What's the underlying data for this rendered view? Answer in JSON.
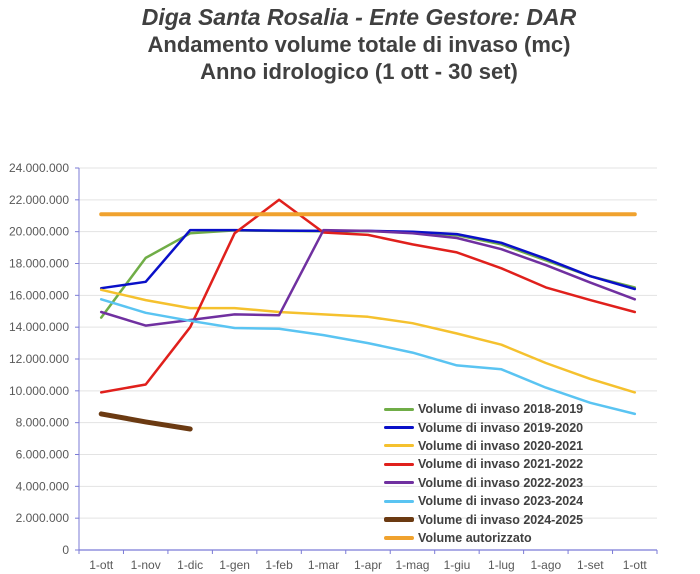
{
  "titles": {
    "line1": "Diga Santa Rosalia - Ente Gestore: DAR",
    "line2": "Andamento volume totale di invaso (mc)",
    "line3": "Anno idrologico (1 ott - 30 set)"
  },
  "chart_data": {
    "type": "line",
    "title": "Diga Santa Rosalia - Ente Gestore: DAR — Andamento volume totale di invaso (mc) — Anno idrologico (1 ott - 30 set)",
    "xlabel": "",
    "ylabel": "",
    "ylim": [
      0,
      24000000
    ],
    "yticks": [
      0,
      2000000,
      4000000,
      6000000,
      8000000,
      10000000,
      12000000,
      14000000,
      16000000,
      18000000,
      20000000,
      22000000,
      24000000
    ],
    "ytick_labels": [
      "0",
      "2.000.000",
      "4.000.000",
      "6.000.000",
      "8.000.000",
      "10.000.000",
      "12.000.000",
      "14.000.000",
      "16.000.000",
      "18.000.000",
      "20.000.000",
      "22.000.000",
      "24.000.000"
    ],
    "grid": "horizontal",
    "legend_position": "lower-right inside plot",
    "categories": [
      "1-ott",
      "1-nov",
      "1-dic",
      "1-gen",
      "1-feb",
      "1-mar",
      "1-apr",
      "1-mag",
      "1-giu",
      "1-lug",
      "1-ago",
      "1-set",
      "1-ott"
    ],
    "series": [
      {
        "name": "Volume di invaso 2018-2019",
        "color": "#70AD47",
        "width": 2.5,
        "values": [
          14600000,
          18350000,
          19900000,
          20080000,
          20050000,
          20030000,
          20020000,
          19980000,
          19780000,
          19200000,
          18200000,
          17200000,
          16500000
        ]
      },
      {
        "name": "Volume di invaso 2019-2020",
        "color": "#0A10C8",
        "width": 2.5,
        "values": [
          16450000,
          16850000,
          20100000,
          20100000,
          20070000,
          20050000,
          20050000,
          20000000,
          19850000,
          19300000,
          18300000,
          17200000,
          16400000
        ]
      },
      {
        "name": "Volume di invaso 2020-2021",
        "color": "#F5C12E",
        "width": 2.5,
        "values": [
          16350000,
          15700000,
          15200000,
          15200000,
          14950000,
          14800000,
          14650000,
          14250000,
          13600000,
          12900000,
          11750000,
          10750000,
          9900000
        ]
      },
      {
        "name": "Volume di invaso 2021-2022",
        "color": "#E0201C",
        "width": 2.5,
        "values": [
          9900000,
          10400000,
          14000000,
          19900000,
          22000000,
          19950000,
          19800000,
          19200000,
          18700000,
          17700000,
          16500000,
          15700000,
          14950000
        ]
      },
      {
        "name": "Volume di invaso 2022-2023",
        "color": "#7030A0",
        "width": 2.5,
        "values": [
          14950000,
          14100000,
          14450000,
          14800000,
          14750000,
          20100000,
          20050000,
          19900000,
          19600000,
          18900000,
          17900000,
          16800000,
          15750000
        ]
      },
      {
        "name": "Volume di invaso 2023-2024",
        "color": "#5AC4F2",
        "width": 2.5,
        "values": [
          15750000,
          14900000,
          14400000,
          13950000,
          13900000,
          13500000,
          13000000,
          12400000,
          11600000,
          11350000,
          10200000,
          9250000,
          8550000
        ]
      },
      {
        "name": "Volume di invaso 2024-2025",
        "color": "#6B3A12",
        "width": 5,
        "values": [
          8550000,
          8050000,
          7600000,
          null,
          null,
          null,
          null,
          null,
          null,
          null,
          null,
          null,
          null
        ]
      },
      {
        "name": "Volume autorizzato",
        "color": "#F0A22E",
        "width": 4,
        "values": [
          21100000,
          21100000,
          21100000,
          21100000,
          21100000,
          21100000,
          21100000,
          21100000,
          21100000,
          21100000,
          21100000,
          21100000,
          21100000
        ]
      }
    ]
  }
}
